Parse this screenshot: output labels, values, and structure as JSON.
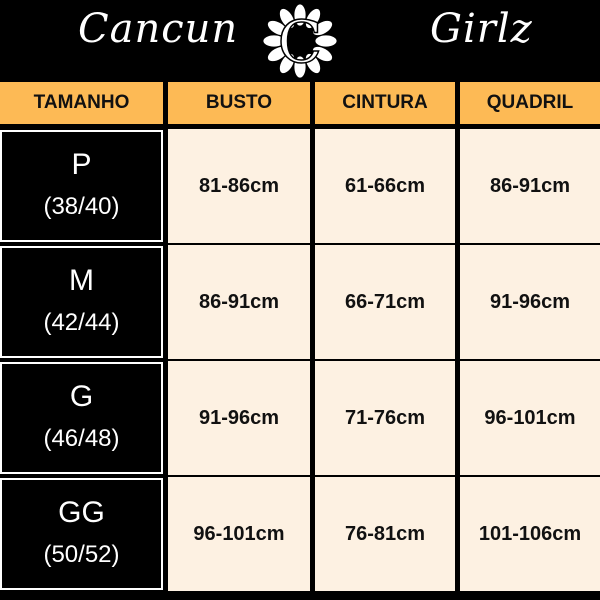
{
  "brand": {
    "left_word": "Cancun",
    "right_word": "Girlz",
    "logo_letter": "C"
  },
  "colors": {
    "header_bg": "#FDBA55",
    "cell_bg": "#FDF1E2",
    "size_bg": "#000000"
  },
  "headers": [
    "TAMANHO",
    "BUSTO",
    "CINTURA",
    "QUADRIL"
  ],
  "rows": [
    {
      "size": "P",
      "numeric": "(38/40)",
      "busto": "81-86cm",
      "cintura": "61-66cm",
      "quadril": "86-91cm"
    },
    {
      "size": "M",
      "numeric": "(42/44)",
      "busto": "86-91cm",
      "cintura": "66-71cm",
      "quadril": "91-96cm"
    },
    {
      "size": "G",
      "numeric": "(46/48)",
      "busto": "91-96cm",
      "cintura": "71-76cm",
      "quadril": "96-101cm"
    },
    {
      "size": "GG",
      "numeric": "(50/52)",
      "busto": "96-101cm",
      "cintura": "76-81cm",
      "quadril": "101-106cm"
    }
  ]
}
